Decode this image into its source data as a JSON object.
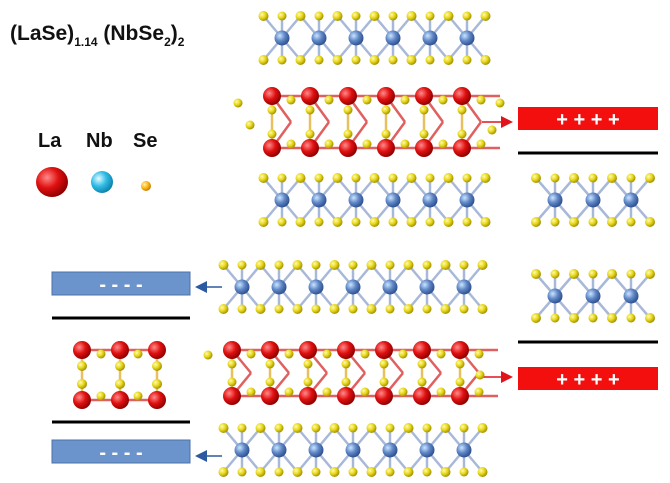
{
  "title": {
    "parts": [
      "(LaSe)",
      "1.14",
      " (NbSe",
      "2",
      ")",
      "2"
    ]
  },
  "legend": [
    {
      "label": "La"
    },
    {
      "label": "Nb"
    },
    {
      "label": "Se"
    }
  ],
  "charges": {
    "positive": [
      "+ + + +",
      "+ + + +"
    ],
    "negative": [
      "- - - -",
      "- - - -"
    ]
  }
}
